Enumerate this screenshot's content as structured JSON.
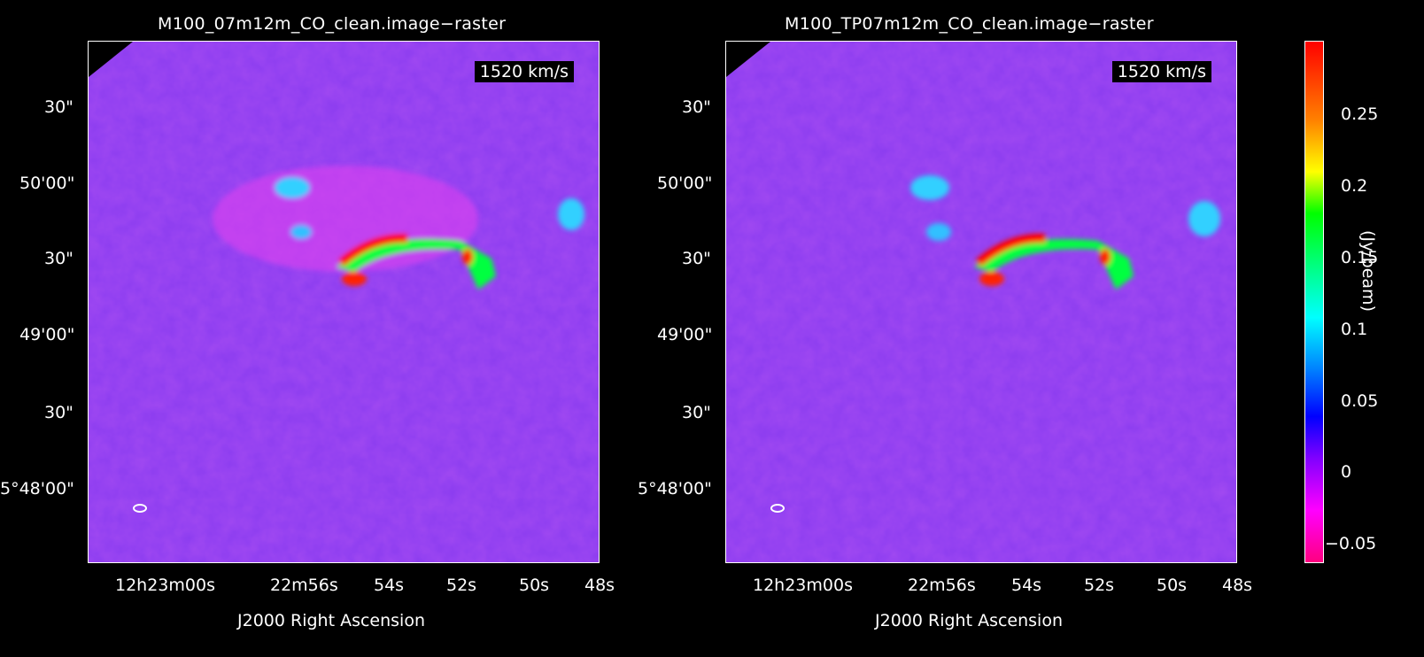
{
  "panels": [
    {
      "title": "M100_07m12m_CO_clean.image−raster",
      "velocity": "1520 km/s"
    },
    {
      "title": "M100_TP07m12m_CO_clean.image−raster",
      "velocity": "1520 km/s"
    }
  ],
  "y_ticks": [
    "30\"",
    "50'00\"",
    "30\"",
    "49'00\"",
    "30\"",
    "5°48'00\""
  ],
  "x_ticks": [
    "12h23m00s",
    "22m56s",
    "54s",
    "52s",
    "50s",
    "48s"
  ],
  "x_label": "J2000 Right Ascension",
  "colorbar": {
    "ticks": [
      "0.25",
      "0.2",
      "0.15",
      "0.1",
      "0.05",
      "0",
      "−0.05"
    ],
    "label": "(Jy/beam)"
  },
  "colors": {
    "background": "#000000",
    "field": "#9a42f0",
    "emission_peak": "#ff0000"
  }
}
